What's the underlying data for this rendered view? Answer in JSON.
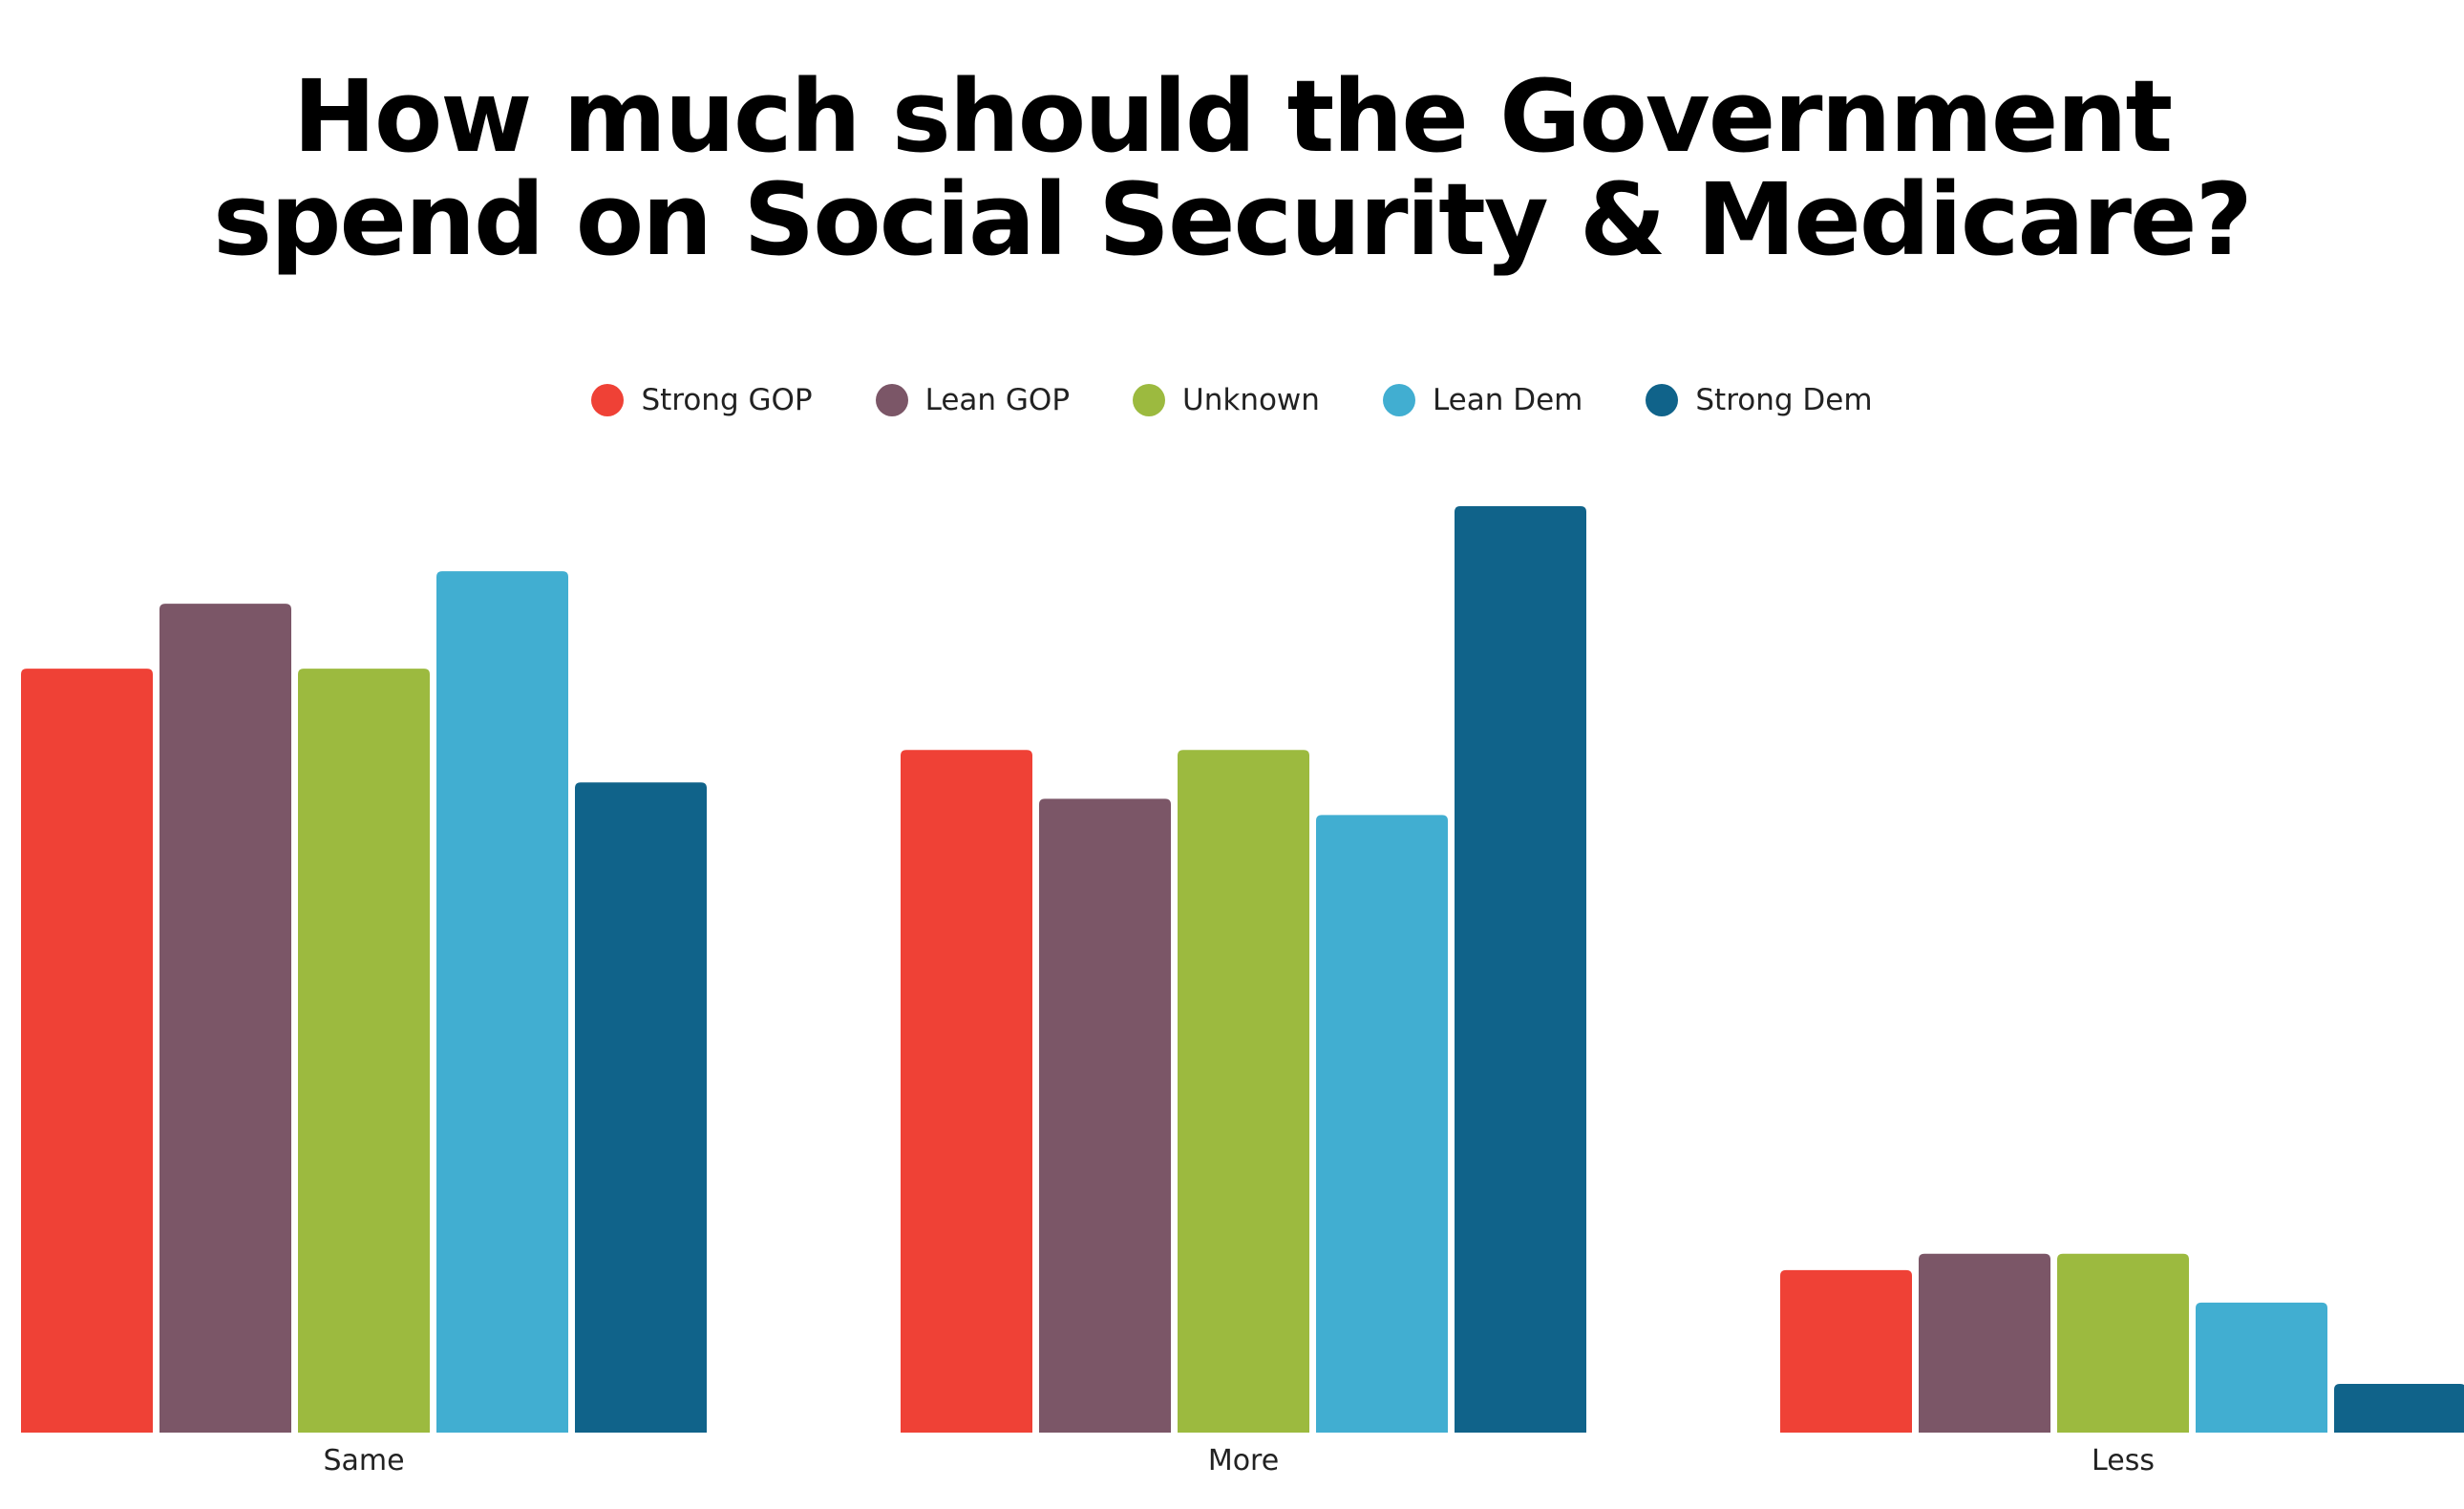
{
  "chart_data": {
    "type": "bar",
    "title_lines": [
      "How much should the Government",
      "spend on Social Security & Medicare?"
    ],
    "categories": [
      "Same",
      "More",
      "Less"
    ],
    "series": [
      {
        "name": "Strong GOP",
        "color": "#ef4136",
        "values": [
          47,
          42,
          10
        ]
      },
      {
        "name": "Lean GOP",
        "color": "#7b5667",
        "values": [
          51,
          39,
          11
        ]
      },
      {
        "name": "Unknown",
        "color": "#9cba3f",
        "values": [
          47,
          42,
          11
        ]
      },
      {
        "name": "Lean Dem",
        "color": "#41aed1",
        "values": [
          53,
          38,
          8
        ]
      },
      {
        "name": "Strong Dem",
        "color": "#10638a",
        "values": [
          40,
          57,
          3
        ]
      }
    ],
    "ylim": [
      0,
      57
    ],
    "legend_position": "top",
    "grid": false
  }
}
